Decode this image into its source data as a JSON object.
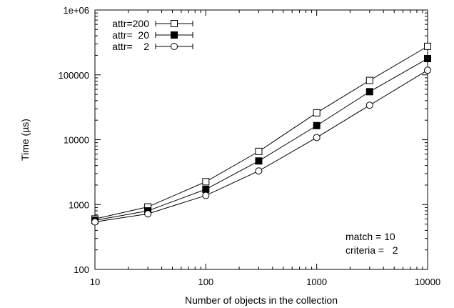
{
  "chart_data": {
    "type": "line",
    "xlabel": "Number of objects in the collection",
    "ylabel": "Time (µs)",
    "x_scale": "log",
    "y_scale": "log",
    "xlim": [
      10,
      10000
    ],
    "ylim": [
      100,
      1000000
    ],
    "x_ticks": [
      10,
      100,
      1000,
      10000
    ],
    "x_tick_labels": [
      "10",
      "100",
      "1000",
      "10000"
    ],
    "y_ticks": [
      100,
      1000,
      10000,
      100000,
      1000000
    ],
    "y_tick_labels": [
      "100",
      "1000",
      "10000",
      "100000",
      "1e+06"
    ],
    "grid": false,
    "legend_position": "top-left",
    "x": [
      10,
      30,
      100,
      300,
      1000,
      3000,
      10000
    ],
    "series": [
      {
        "name": "attr=200",
        "marker": "open-square",
        "values": [
          600,
          920,
          2250,
          6600,
          26000,
          82000,
          275000
        ]
      },
      {
        "name": "attr=  20",
        "marker": "filled-square",
        "values": [
          570,
          800,
          1720,
          4700,
          16500,
          55000,
          178000
        ]
      },
      {
        "name": "attr=    2",
        "marker": "open-circle",
        "values": [
          540,
          720,
          1380,
          3300,
          10800,
          34000,
          118000
        ]
      }
    ],
    "annotations": [
      "match = 10",
      "criteria =   2"
    ]
  }
}
